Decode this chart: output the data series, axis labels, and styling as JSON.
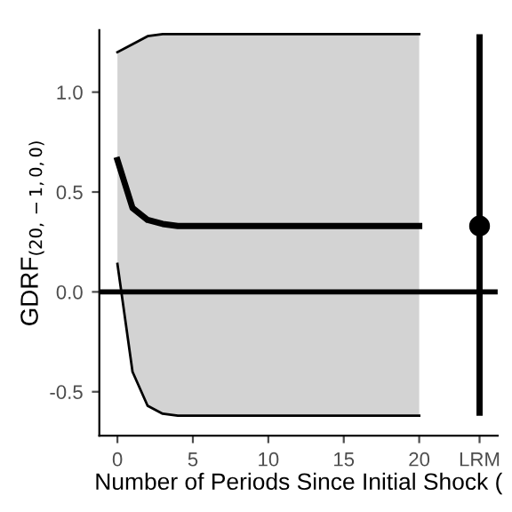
{
  "chart_data": {
    "type": "line",
    "xlabel": "Number of Periods Since Initial Shock (",
    "ylabel": "GDRF$_{(20,−1,0,0)}$",
    "series": [
      {
        "color": "#000000",
        "x": [
          0,
          1,
          2,
          3,
          4,
          5,
          6,
          8,
          10,
          12,
          14,
          16,
          18,
          20
        ],
        "values": [
          1.2,
          1.24,
          1.28,
          1.29,
          1.29,
          1.29,
          1.29,
          1.29,
          1.29,
          1.29,
          1.29,
          1.29,
          1.29,
          1.29
        ]
      },
      {
        "color": "#000000",
        "x": [
          0,
          1,
          2,
          3,
          4,
          5,
          6,
          8,
          10,
          12,
          14,
          16,
          18,
          20
        ],
        "values": [
          0.14,
          -0.4,
          -0.57,
          -0.61,
          -0.62,
          -0.62,
          -0.62,
          -0.62,
          -0.62,
          -0.62,
          -0.62,
          -0.62,
          -0.62,
          -0.62
        ]
      },
      {
        "color": "#000000",
        "x": [
          0,
          1,
          2,
          3,
          4,
          5,
          6,
          8,
          10,
          12,
          14,
          16,
          18,
          20
        ],
        "values": [
          0.66,
          0.42,
          0.36,
          0.34,
          0.33,
          0.33,
          0.33,
          0.33,
          0.33,
          0.33,
          0.33,
          0.33,
          0.33,
          0.33
        ],
        "lower": [
          0.14,
          -0.4,
          -0.57,
          -0.61,
          -0.62,
          -0.62,
          -0.62,
          -0.62,
          -0.62,
          -0.62,
          -0.62,
          -0.62,
          -0.62,
          -0.62
        ],
        "upper": [
          1.2,
          1.24,
          1.28,
          1.29,
          1.29,
          1.29,
          1.29,
          1.29,
          1.29,
          1.29,
          1.29,
          1.29,
          1.29,
          1.29
        ]
      },
      {
        "type": "scatter",
        "marker": "circle",
        "color": "#000000",
        "x": [
          24
        ],
        "values": [
          0.33
        ],
        "errors": [
          [
            -0.62,
            1.29
          ]
        ]
      }
    ],
    "xlim": [
      -1.2,
      25.2
    ],
    "ylim": [
      -0.72,
      1.31
    ],
    "xticks": [
      0,
      5,
      10,
      15,
      20,
      {
        "value": 24,
        "label": "LRM"
      }
    ],
    "yticks": [
      {
        "value": -0.5,
        "label": "-0.5"
      },
      {
        "value": 0.0,
        "label": "0.0"
      },
      {
        "value": 0.5,
        "label": "0.5"
      },
      {
        "value": 1.0,
        "label": "1.0"
      }
    ],
    "ref_lines": [
      {
        "axis": "y",
        "value": 0,
        "color": "#000000",
        "line_style": "solid"
      }
    ],
    "grid": false,
    "legend": false
  }
}
